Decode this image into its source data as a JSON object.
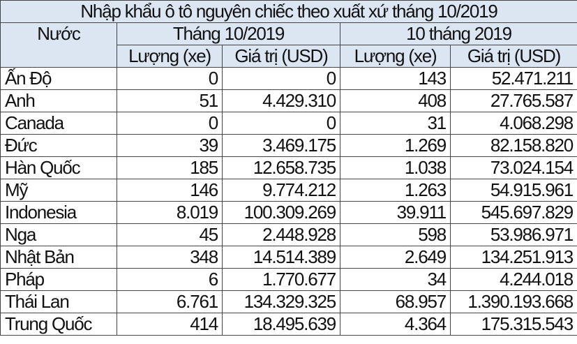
{
  "title": "Nhập khẩu ô tô nguyên chiếc theo xuất xứ tháng 10/2019",
  "header": {
    "country": "Nước",
    "period1": "Tháng 10/2019",
    "period2": "10 tháng 2019",
    "qty": "Lượng (xe)",
    "value": "Giá trị (USD)"
  },
  "header_bg": "#dce6f2",
  "rows": [
    {
      "country": "Ấn Độ",
      "q1": "0",
      "v1": "0",
      "q2": "143",
      "v2": "52.471.211"
    },
    {
      "country": "Anh",
      "q1": "51",
      "v1": "4.429.310",
      "q2": "408",
      "v2": "27.765.587"
    },
    {
      "country": "Canada",
      "q1": "0",
      "v1": "0",
      "q2": "31",
      "v2": "4.068.298"
    },
    {
      "country": "Đức",
      "q1": "39",
      "v1": "3.469.175",
      "q2": "1.269",
      "v2": "82.158.820"
    },
    {
      "country": "Hàn Quốc",
      "q1": "185",
      "v1": "12.658.735",
      "q2": "1.038",
      "v2": "73.024.154"
    },
    {
      "country": "Mỹ",
      "q1": "146",
      "v1": "9.774.212",
      "q2": "1.263",
      "v2": "54.915.961"
    },
    {
      "country": "Indonesia",
      "q1": "8.019",
      "v1": "100.309.269",
      "q2": "39.911",
      "v2": "545.697.829"
    },
    {
      "country": "Nga",
      "q1": "45",
      "v1": "2.448.928",
      "q2": "598",
      "v2": "53.986.971"
    },
    {
      "country": "Nhật Bản",
      "q1": "348",
      "v1": "14.514.389",
      "q2": "2.649",
      "v2": "134.251.913"
    },
    {
      "country": "Pháp",
      "q1": "6",
      "v1": "1.770.677",
      "q2": "34",
      "v2": "4.244.018"
    },
    {
      "country": "Thái Lan",
      "q1": "6.761",
      "v1": "134.329.325",
      "q2": "68.957",
      "v2": "1.390.193.668"
    },
    {
      "country": "Trung Quốc",
      "q1": "414",
      "v1": "18.495.639",
      "q2": "4.364",
      "v2": "175.315.543"
    }
  ]
}
